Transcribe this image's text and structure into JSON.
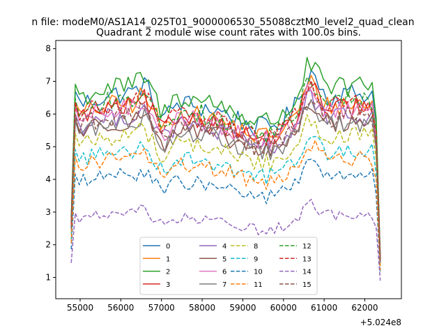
{
  "chart_data": {
    "type": "line",
    "suptitle": "n file: modeM0/AS1A14_025T01_9000006530_55088cztM0_level2_quad_clean",
    "title": "Quadrant 2 module wise count rates with 100.0s bins.",
    "xlabel": "",
    "ylabel": "",
    "offset_text": "+5.024e8",
    "xlim": [
      54400,
      62900
    ],
    "ylim": [
      0.35,
      8.25
    ],
    "x_ticks": [
      55000,
      56000,
      57000,
      58000,
      59000,
      60000,
      61000,
      62000
    ],
    "x_tick_labels": [
      "55000",
      "56000",
      "57000",
      "58000",
      "59000",
      "60000",
      "61000",
      "62000"
    ],
    "y_ticks": [
      1,
      2,
      3,
      4,
      5,
      6,
      7,
      8
    ],
    "y_tick_labels": [
      "1",
      "2",
      "3",
      "4",
      "5",
      "6",
      "7",
      "8"
    ],
    "x_range": [
      54780,
      62380
    ],
    "bins": 77,
    "legend": {
      "position": "lower center",
      "columns": 4
    },
    "series": [
      {
        "name": "0",
        "color": "#1f77b4",
        "style": "solid",
        "level": 6.2
      },
      {
        "name": "1",
        "color": "#ff7f0e",
        "style": "solid",
        "level": 5.9
      },
      {
        "name": "2",
        "color": "#2ca02c",
        "style": "solid",
        "level": 6.4
      },
      {
        "name": "3",
        "color": "#d62728",
        "style": "solid",
        "level": 5.8
      },
      {
        "name": "4",
        "color": "#9467bd",
        "style": "solid",
        "level": 5.55
      },
      {
        "name": "5",
        "color": "#8c564b",
        "style": "solid",
        "level": 5.4
      },
      {
        "name": "6",
        "color": "#e377c2",
        "style": "solid",
        "level": 5.75
      },
      {
        "name": "7",
        "color": "#7f7f7f",
        "style": "solid",
        "level": 5.35
      },
      {
        "name": "8",
        "color": "#bcbd22",
        "style": "dashed",
        "level": 5.0
      },
      {
        "name": "9",
        "color": "#17becf",
        "style": "dashed",
        "level": 4.55
      },
      {
        "name": "10",
        "color": "#1f77b4",
        "style": "dashed",
        "level": 3.85
      },
      {
        "name": "11",
        "color": "#ff7f0e",
        "style": "dashed",
        "level": 4.35
      },
      {
        "name": "12",
        "color": "#2ca02c",
        "style": "dashed",
        "level": 6.0
      },
      {
        "name": "13",
        "color": "#d62728",
        "style": "dashed",
        "level": 5.9
      },
      {
        "name": "14",
        "color": "#9467bd",
        "style": "dashed",
        "level": 2.75
      },
      {
        "name": "15",
        "color": "#8c564b",
        "style": "dashed",
        "level": 5.55
      }
    ]
  }
}
